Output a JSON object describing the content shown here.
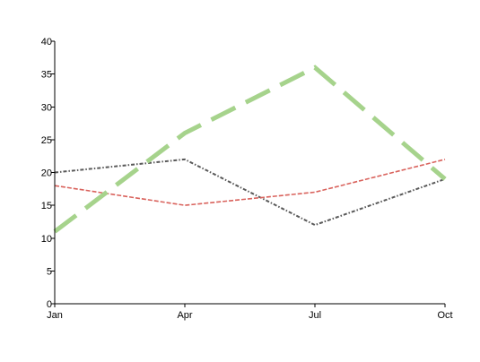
{
  "chart_data": {
    "type": "line",
    "categories": [
      "Jan",
      "Apr",
      "Jul",
      "Oct"
    ],
    "yticks": [
      "0",
      "5",
      "10",
      "15",
      "20",
      "25",
      "30",
      "35",
      "40"
    ],
    "ylim": [
      0,
      40
    ],
    "grid": false,
    "legend": "none",
    "series": [
      {
        "values": [
          20,
          22,
          12,
          19
        ],
        "color": "#595959",
        "style": "dash-dot"
      },
      {
        "values": [
          18,
          15,
          17,
          22
        ],
        "color": "#d9625c",
        "style": "dashed"
      },
      {
        "values": [
          11,
          26,
          36,
          19
        ],
        "color": "#a6d38c",
        "style": "long-dash-thick"
      }
    ]
  }
}
